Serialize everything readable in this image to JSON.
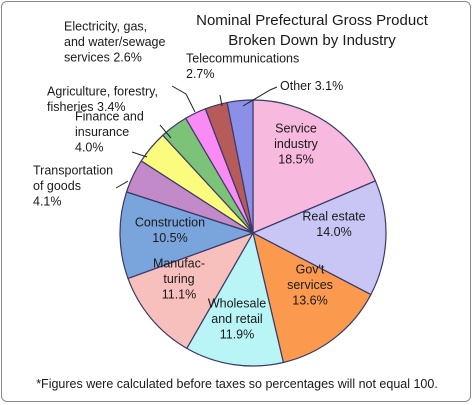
{
  "chart_data": {
    "type": "pie",
    "title": [
      "Nominal Prefectural Gross Product",
      "Broken Down by Industry"
    ],
    "footnote": "*Figures were calculated before taxes so percentages will not equal 100.",
    "slices": [
      {
        "key": "service",
        "lines": [
          "Service",
          "industry",
          "18.5%"
        ],
        "value": 18.5,
        "color": "#f7b9de"
      },
      {
        "key": "realestate",
        "lines": [
          "Real estate",
          "14.0%"
        ],
        "value": 14.0,
        "color": "#c9c6f6"
      },
      {
        "key": "govt",
        "lines": [
          "Gov't",
          "services",
          "13.6%"
        ],
        "value": 13.6,
        "color": "#fb9a4e"
      },
      {
        "key": "wholesale",
        "lines": [
          "Wholesale",
          "and retail",
          "11.9%"
        ],
        "value": 11.9,
        "color": "#b9f4f6"
      },
      {
        "key": "manufacturing",
        "lines": [
          "Manufac-",
          "turing",
          "11.1%"
        ],
        "value": 11.1,
        "color": "#f8c0bc"
      },
      {
        "key": "construction",
        "lines": [
          "Construction",
          "10.5%"
        ],
        "value": 10.5,
        "color": "#7aa4dc"
      },
      {
        "key": "transport",
        "lines": [
          "Transportation",
          "of goods",
          "4.1%"
        ],
        "value": 4.1,
        "color": "#c28ac9"
      },
      {
        "key": "finance",
        "lines": [
          "Finance and",
          "insurance",
          "4.0%"
        ],
        "value": 4.0,
        "color": "#fbfb7e"
      },
      {
        "key": "agri",
        "lines": [
          "Agriculture, forestry,",
          "fisheries 3.4%"
        ],
        "value": 3.4,
        "color": "#7dc279"
      },
      {
        "key": "utilities",
        "lines": [
          "Electricity, gas,",
          "and water/sewage",
          "services 2.6%"
        ],
        "value": 2.6,
        "color": "#fa8af4"
      },
      {
        "key": "telecom",
        "lines": [
          "Telecommunications",
          "2.7%"
        ],
        "value": 2.7,
        "color": "#b65a5a"
      },
      {
        "key": "other",
        "lines": [
          "Other 3.1%"
        ],
        "value": 3.1,
        "color": "#8b8fe8"
      }
    ]
  }
}
